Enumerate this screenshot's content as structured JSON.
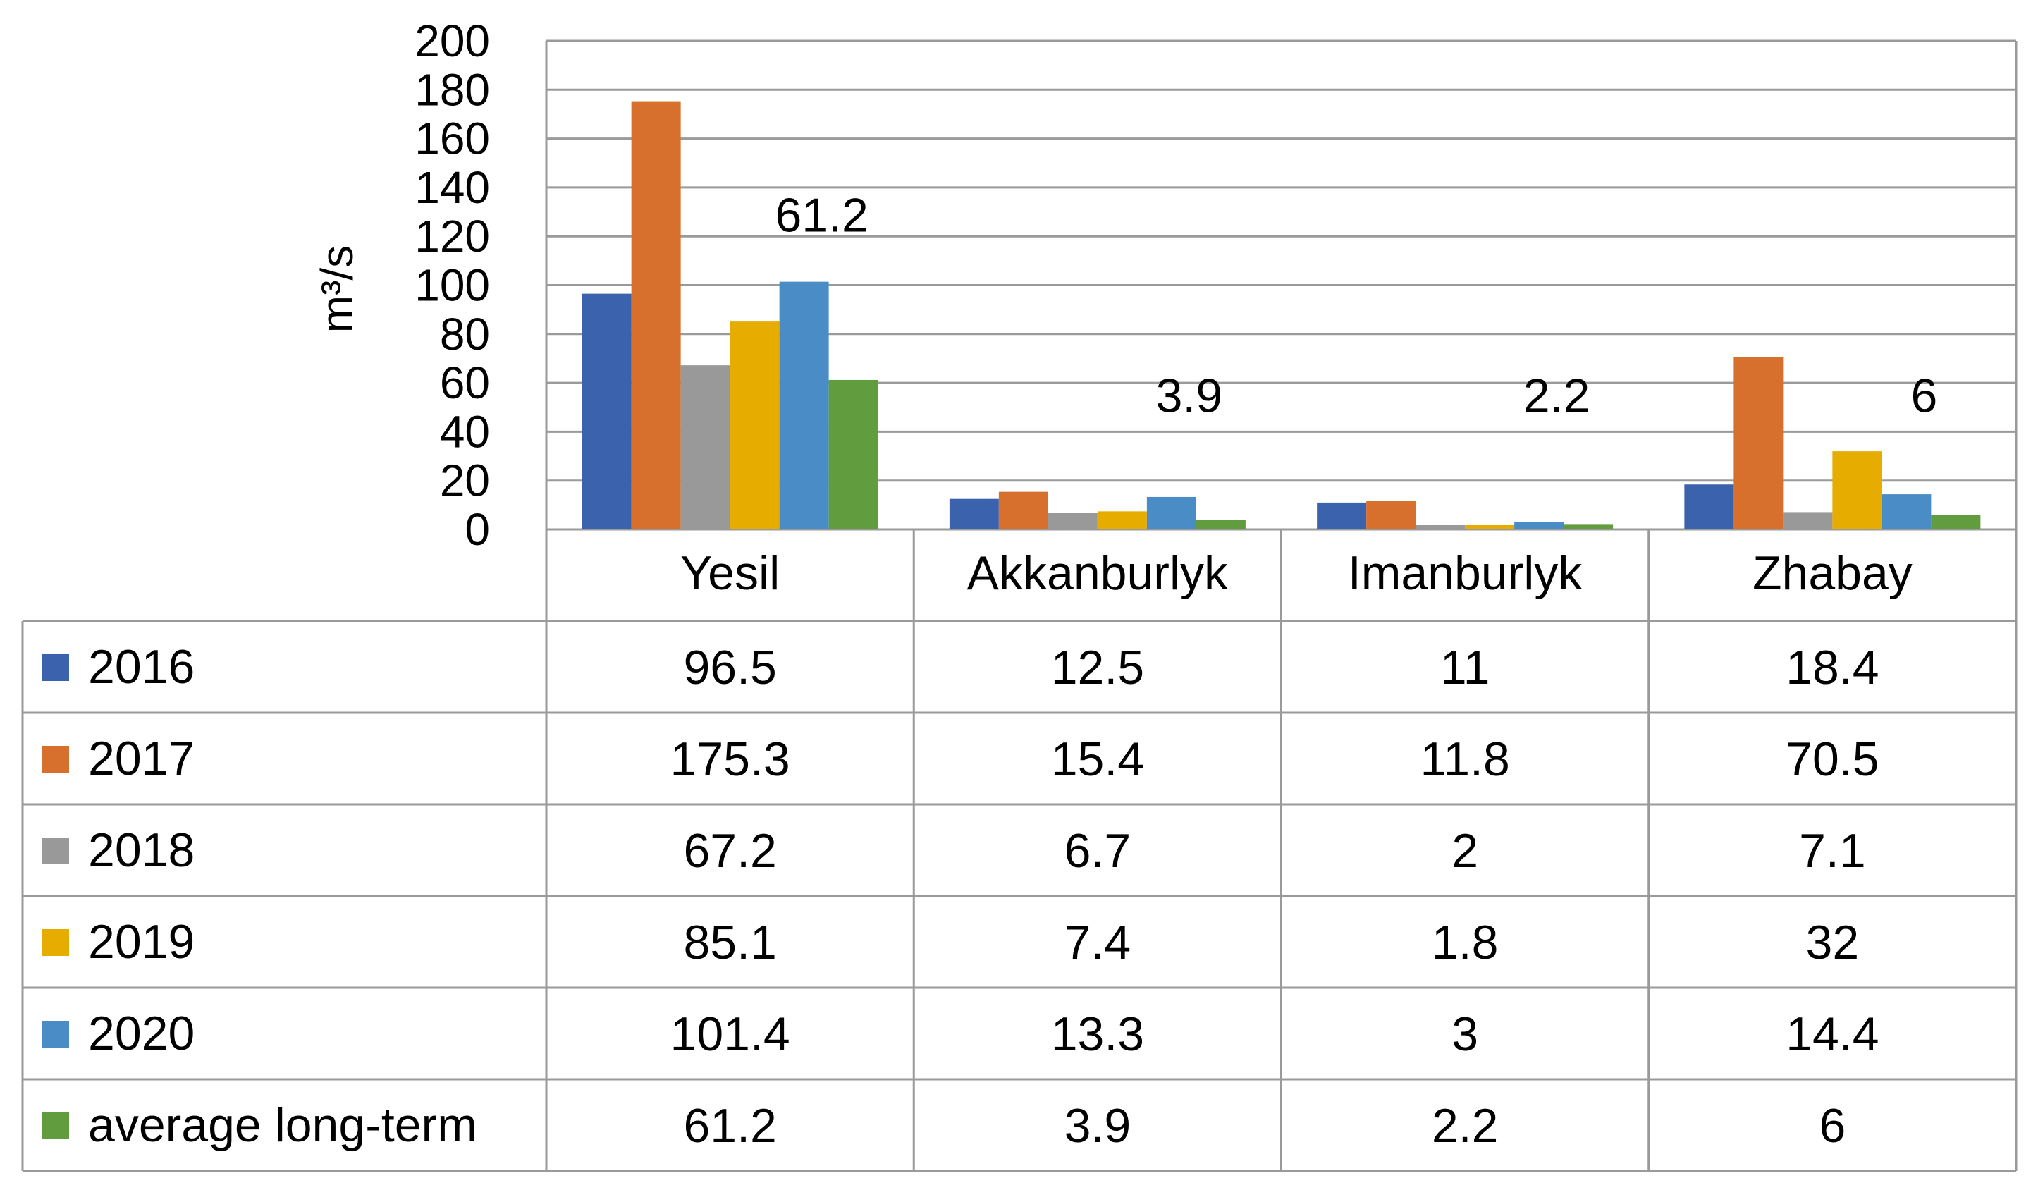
{
  "chart_data": {
    "type": "bar",
    "categories": [
      "Yesil",
      "Akkanburlyk",
      "Imanburlyk",
      "Zhabay"
    ],
    "series": [
      {
        "name": "2016",
        "color": "#3a62ad",
        "values": [
          96.5,
          12.5,
          11,
          18.4
        ]
      },
      {
        "name": "2017",
        "color": "#d7702c",
        "values": [
          175.3,
          15.4,
          11.8,
          70.5
        ]
      },
      {
        "name": "2018",
        "color": "#999999",
        "values": [
          67.2,
          6.7,
          2,
          7.1
        ]
      },
      {
        "name": "2019",
        "color": "#e6ac00",
        "values": [
          85.1,
          7.4,
          1.8,
          32
        ]
      },
      {
        "name": "2020",
        "color": "#4a8cc6",
        "values": [
          101.4,
          13.3,
          3,
          14.4
        ]
      },
      {
        "name": "average long-term",
        "color": "#619c3f",
        "values": [
          61.2,
          3.9,
          2.2,
          6
        ]
      }
    ],
    "data_labels": [
      "61.2",
      "3.9",
      "2.2",
      "6"
    ],
    "ylabel": "m³/s",
    "ylim": [
      0,
      200
    ],
    "yticks": [
      0,
      20,
      40,
      60,
      80,
      100,
      120,
      140,
      160,
      180,
      200
    ],
    "grid": true,
    "legend": "data table"
  }
}
